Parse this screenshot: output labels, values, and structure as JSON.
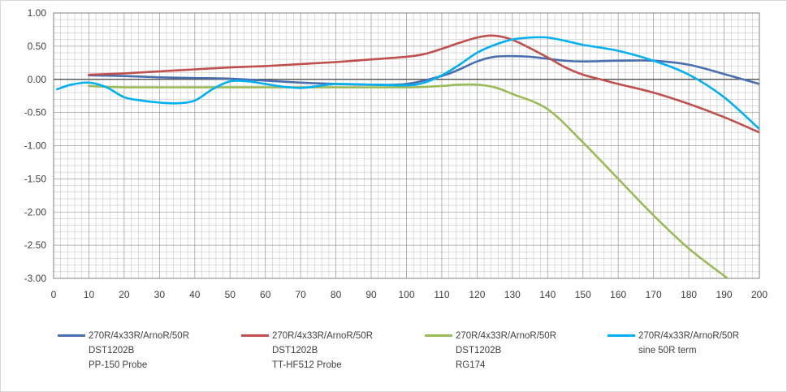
{
  "chart_data": {
    "type": "line",
    "title": "",
    "xlabel": "",
    "ylabel": "",
    "xlim": [
      0,
      200
    ],
    "ylim": [
      -3.0,
      1.0
    ],
    "x_ticks": [
      "0",
      "10",
      "20",
      "30",
      "40",
      "50",
      "60",
      "70",
      "80",
      "90",
      "100",
      "110",
      "120",
      "130",
      "140",
      "150",
      "160",
      "170",
      "180",
      "190",
      "200"
    ],
    "y_ticks": [
      "1.00",
      "0.50",
      "0.00",
      "-0.50",
      "-1.00",
      "-1.50",
      "-2.00",
      "-2.50",
      "-3.00"
    ],
    "grid": true,
    "legend_position": "bottom",
    "series": [
      {
        "name_lines": [
          "270R/4x33R/ArnoR/50R",
          "DST1202B",
          "PP-150 Probe"
        ],
        "color": "#4a6fae",
        "points": [
          [
            10,
            0.06
          ],
          [
            20,
            0.05
          ],
          [
            30,
            0.03
          ],
          [
            40,
            0.02
          ],
          [
            50,
            0.01
          ],
          [
            60,
            -0.02
          ],
          [
            70,
            -0.05
          ],
          [
            80,
            -0.07
          ],
          [
            90,
            -0.08
          ],
          [
            100,
            -0.07
          ],
          [
            110,
            0.05
          ],
          [
            115,
            0.15
          ],
          [
            120,
            0.27
          ],
          [
            125,
            0.34
          ],
          [
            130,
            0.35
          ],
          [
            135,
            0.34
          ],
          [
            140,
            0.31
          ],
          [
            145,
            0.28
          ],
          [
            150,
            0.27
          ],
          [
            160,
            0.28
          ],
          [
            170,
            0.28
          ],
          [
            180,
            0.22
          ],
          [
            190,
            0.08
          ],
          [
            200,
            -0.07
          ]
        ]
      },
      {
        "name_lines": [
          "270R/4x33R/ArnoR/50R",
          "DST1202B",
          "TT-HF512 Probe"
        ],
        "color": "#c0504d",
        "points": [
          [
            10,
            0.07
          ],
          [
            20,
            0.09
          ],
          [
            30,
            0.12
          ],
          [
            40,
            0.15
          ],
          [
            50,
            0.18
          ],
          [
            60,
            0.2
          ],
          [
            70,
            0.23
          ],
          [
            80,
            0.26
          ],
          [
            90,
            0.3
          ],
          [
            100,
            0.34
          ],
          [
            105,
            0.38
          ],
          [
            110,
            0.46
          ],
          [
            115,
            0.55
          ],
          [
            120,
            0.63
          ],
          [
            124,
            0.66
          ],
          [
            128,
            0.63
          ],
          [
            132,
            0.55
          ],
          [
            140,
            0.33
          ],
          [
            145,
            0.18
          ],
          [
            150,
            0.07
          ],
          [
            155,
            0.0
          ],
          [
            160,
            -0.07
          ],
          [
            170,
            -0.2
          ],
          [
            180,
            -0.37
          ],
          [
            190,
            -0.57
          ],
          [
            200,
            -0.8
          ]
        ]
      },
      {
        "name_lines": [
          "270R/4x33R/ArnoR/50R",
          "DST1202B",
          "RG174"
        ],
        "color": "#9bbb59",
        "points": [
          [
            10,
            -0.1
          ],
          [
            20,
            -0.12
          ],
          [
            40,
            -0.12
          ],
          [
            60,
            -0.12
          ],
          [
            80,
            -0.12
          ],
          [
            100,
            -0.12
          ],
          [
            110,
            -0.1
          ],
          [
            115,
            -0.08
          ],
          [
            120,
            -0.08
          ],
          [
            125,
            -0.12
          ],
          [
            130,
            -0.22
          ],
          [
            140,
            -0.45
          ],
          [
            150,
            -0.95
          ],
          [
            160,
            -1.5
          ],
          [
            170,
            -2.05
          ],
          [
            180,
            -2.55
          ],
          [
            191,
            -3.0
          ]
        ]
      },
      {
        "name_lines": [
          "270R/4x33R/ArnoR/50R",
          "sine 50R term"
        ],
        "color": "#00b0f0",
        "points": [
          [
            1,
            -0.15
          ],
          [
            5,
            -0.08
          ],
          [
            10,
            -0.05
          ],
          [
            15,
            -0.12
          ],
          [
            20,
            -0.27
          ],
          [
            25,
            -0.32
          ],
          [
            30,
            -0.35
          ],
          [
            35,
            -0.36
          ],
          [
            40,
            -0.32
          ],
          [
            45,
            -0.15
          ],
          [
            50,
            -0.03
          ],
          [
            55,
            -0.03
          ],
          [
            60,
            -0.07
          ],
          [
            65,
            -0.11
          ],
          [
            70,
            -0.13
          ],
          [
            75,
            -0.1
          ],
          [
            80,
            -0.07
          ],
          [
            90,
            -0.08
          ],
          [
            100,
            -0.09
          ],
          [
            105,
            -0.05
          ],
          [
            110,
            0.06
          ],
          [
            115,
            0.22
          ],
          [
            120,
            0.4
          ],
          [
            125,
            0.52
          ],
          [
            130,
            0.6
          ],
          [
            135,
            0.63
          ],
          [
            140,
            0.63
          ],
          [
            145,
            0.58
          ],
          [
            150,
            0.52
          ],
          [
            160,
            0.43
          ],
          [
            170,
            0.28
          ],
          [
            180,
            0.07
          ],
          [
            190,
            -0.27
          ],
          [
            200,
            -0.75
          ]
        ]
      }
    ]
  }
}
